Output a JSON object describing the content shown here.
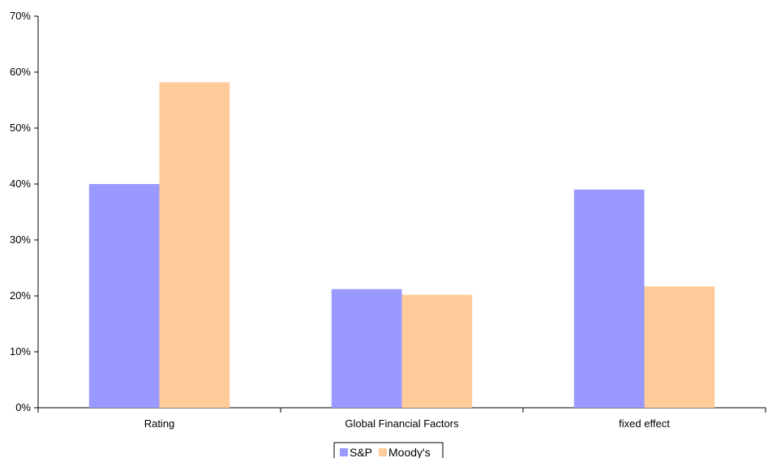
{
  "chart_data": {
    "type": "bar",
    "categories": [
      "Rating",
      "Global Financial Factors",
      "fixed effect"
    ],
    "series": [
      {
        "name": "S&P",
        "values": [
          40,
          21.2,
          39
        ],
        "color": "#9999ff"
      },
      {
        "name": "Moody's",
        "values": [
          58.2,
          20.2,
          21.7
        ],
        "color": "#ffcc99"
      }
    ],
    "y_ticks": [
      "0%",
      "10%",
      "20%",
      "30%",
      "40%",
      "50%",
      "60%",
      "70%"
    ],
    "ylim": [
      0,
      70
    ],
    "y_unit": "%",
    "grid": false,
    "legend_position": "bottom-center"
  }
}
